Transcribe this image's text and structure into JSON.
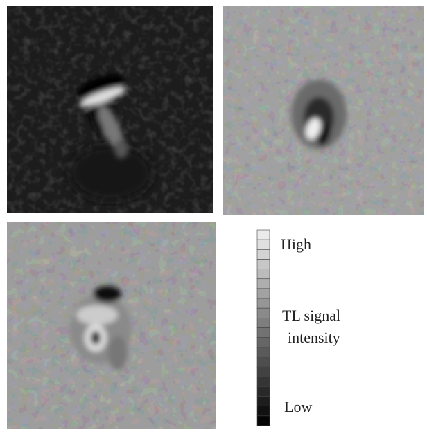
{
  "legend": {
    "high": "High",
    "label_lines": [
      "TL signal",
      "intensity"
    ],
    "low": "Low"
  }
}
